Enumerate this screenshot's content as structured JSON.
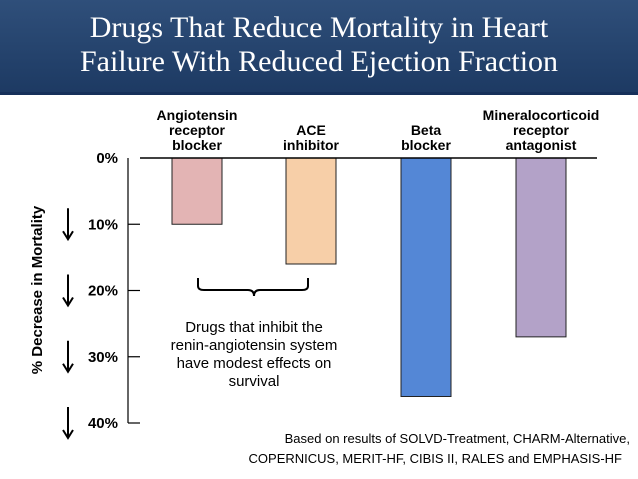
{
  "title": {
    "line1": "Drugs That Reduce Mortality in Heart",
    "line2": "Failure With Reduced Ejection Fraction"
  },
  "chart_data": {
    "type": "bar",
    "title": "Drugs That Reduce Mortality in Heart Failure With Reduced Ejection Fraction",
    "ylabel": "% Decrease in Mortality",
    "ylim": [
      0,
      40
    ],
    "direction": "downward",
    "yticks": [
      "0%",
      "10%",
      "20%",
      "30%",
      "40%"
    ],
    "categories": [
      {
        "lines": [
          "Angiotensin",
          "receptor",
          "blocker"
        ],
        "label": "Angiotensin receptor blocker"
      },
      {
        "lines": [
          "ACE",
          "inhibitor"
        ],
        "label": "ACE inhibitor"
      },
      {
        "lines": [
          "Beta",
          "blocker"
        ],
        "label": "Beta blocker"
      },
      {
        "lines": [
          "Mineralocorticoid",
          "receptor",
          "antagonist"
        ],
        "label": "Mineralocorticoid receptor antagonist"
      }
    ],
    "values": [
      10,
      16,
      36,
      27
    ],
    "colors": [
      "#e3b4b4",
      "#f7cfa8",
      "#5487d6",
      "#b3a2c8"
    ],
    "annotation": {
      "lines": [
        "Drugs that inhibit the",
        "renin-angiotensin system",
        "have modest effects on",
        "survival"
      ]
    },
    "source": {
      "lines": [
        "Based on results of SOLVD-Treatment, CHARM-Alternative,",
        "COPERNICUS, MERIT-HF, CIBIS II, RALES and EMPHASIS-HF"
      ]
    }
  }
}
